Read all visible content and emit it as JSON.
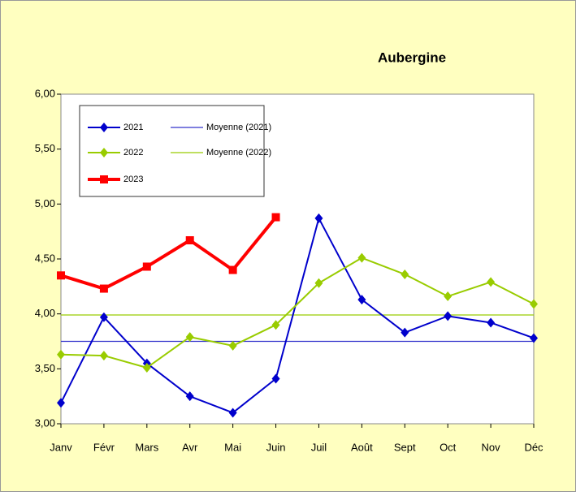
{
  "chart_data": {
    "type": "line",
    "title": "Aubergine",
    "categories": [
      "Janv",
      "Févr",
      "Mars",
      "Avr",
      "Mai",
      "Juin",
      "Juil",
      "Août",
      "Sept",
      "Oct",
      "Nov",
      "Déc"
    ],
    "series": [
      {
        "name": "2021",
        "color": "#0000cc",
        "marker": "diamond",
        "values": [
          3.19,
          3.97,
          3.55,
          3.25,
          3.1,
          3.41,
          4.87,
          4.13,
          3.83,
          3.98,
          3.92,
          3.78
        ]
      },
      {
        "name": "2022",
        "color": "#99cc00",
        "marker": "diamond",
        "values": [
          3.63,
          3.62,
          3.51,
          3.79,
          3.71,
          3.9,
          4.28,
          4.51,
          4.36,
          4.16,
          4.29,
          4.09
        ]
      },
      {
        "name": "2023",
        "color": "#ff0000",
        "marker": "square",
        "values": [
          4.35,
          4.23,
          4.43,
          4.67,
          4.4,
          4.88,
          null,
          null,
          null,
          null,
          null,
          null
        ]
      }
    ],
    "hlines": [
      {
        "name": "Moyenne (2021)",
        "color": "#3333cc",
        "value": 3.75
      },
      {
        "name": "Moyenne (2022)",
        "color": "#99cc00",
        "value": 3.99
      }
    ],
    "ylim": [
      3,
      6
    ],
    "yticks": [
      {
        "value": 3,
        "label": "3,00"
      },
      {
        "value": 3.5,
        "label": "3,50"
      },
      {
        "value": 4,
        "label": "4,00"
      },
      {
        "value": 4.5,
        "label": "4,50"
      },
      {
        "value": 5,
        "label": "5,00"
      },
      {
        "value": 5.5,
        "label": "5,50"
      },
      {
        "value": 6,
        "label": "6,00"
      }
    ],
    "legend": "top-left"
  }
}
